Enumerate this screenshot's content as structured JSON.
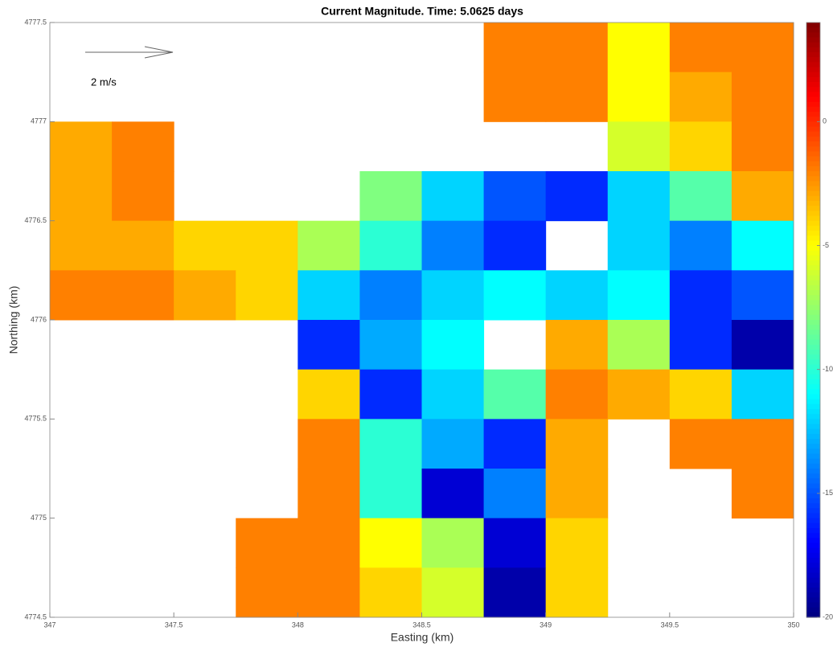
{
  "chart_data": {
    "type": "heatmap",
    "title": "Current Magnitude.   Time: 5.0625 days",
    "x_label": "Easting (km)",
    "y_label": "Northing (km)",
    "quiver_key": {
      "label": "2 m/s"
    },
    "colormap": "jet",
    "x": [
      347.125,
      347.375,
      347.625,
      347.875,
      348.125,
      348.375,
      348.625,
      348.875,
      349.125,
      349.375,
      349.625,
      349.875
    ],
    "y": [
      4777.375,
      4777.125,
      4776.875,
      4776.625,
      4776.375,
      4776.125,
      4775.875,
      4775.625,
      4775.375,
      4775.125,
      4774.875,
      4774.625
    ],
    "values": [
      [
        null,
        null,
        null,
        null,
        null,
        null,
        null,
        -2,
        -2,
        -5,
        -2,
        -2
      ],
      [
        null,
        null,
        null,
        null,
        null,
        null,
        null,
        -2,
        -2,
        -5,
        -3,
        -2
      ],
      [
        -3,
        -2,
        null,
        null,
        null,
        null,
        null,
        null,
        null,
        -6,
        -4,
        -2
      ],
      [
        -3,
        -2,
        null,
        null,
        null,
        -8,
        -12,
        -15,
        -16,
        -12,
        -9,
        -3
      ],
      [
        -3,
        -3,
        -4,
        -4,
        -7,
        -10,
        -14,
        -16,
        null,
        -12,
        -14,
        -11
      ],
      [
        -2,
        -2,
        -3,
        -4,
        -12,
        -14,
        -12,
        -11,
        -12,
        -11,
        -16,
        -15
      ],
      [
        null,
        null,
        null,
        null,
        -16,
        -13,
        -11,
        null,
        -3,
        -7,
        -16,
        -19
      ],
      [
        null,
        null,
        null,
        null,
        -4,
        -16,
        -12,
        -9,
        -2,
        -3,
        -4,
        -12
      ],
      [
        null,
        null,
        null,
        null,
        -2,
        -10,
        -13,
        -16,
        -3,
        null,
        -2,
        -2
      ],
      [
        null,
        null,
        null,
        null,
        -2,
        -10,
        -18,
        -14,
        -3,
        null,
        null,
        -2
      ],
      [
        null,
        null,
        null,
        -2,
        -2,
        -5,
        -7,
        -18,
        -4,
        null,
        null,
        null
      ],
      [
        null,
        null,
        null,
        -2,
        -2,
        -4,
        -6,
        -19,
        -4,
        null,
        null,
        null
      ]
    ],
    "xlim": [
      347,
      350
    ],
    "ylim": [
      4774.5,
      4777.5
    ],
    "xticks": [
      347,
      347.5,
      348,
      348.5,
      349,
      349.5,
      350
    ],
    "yticks": [
      4774.5,
      4775,
      4775.5,
      4776,
      4776.5,
      4777,
      4777.5
    ],
    "clim": [
      -20,
      4
    ],
    "cticks": [
      0,
      -5,
      -10,
      -15,
      -20
    ]
  }
}
